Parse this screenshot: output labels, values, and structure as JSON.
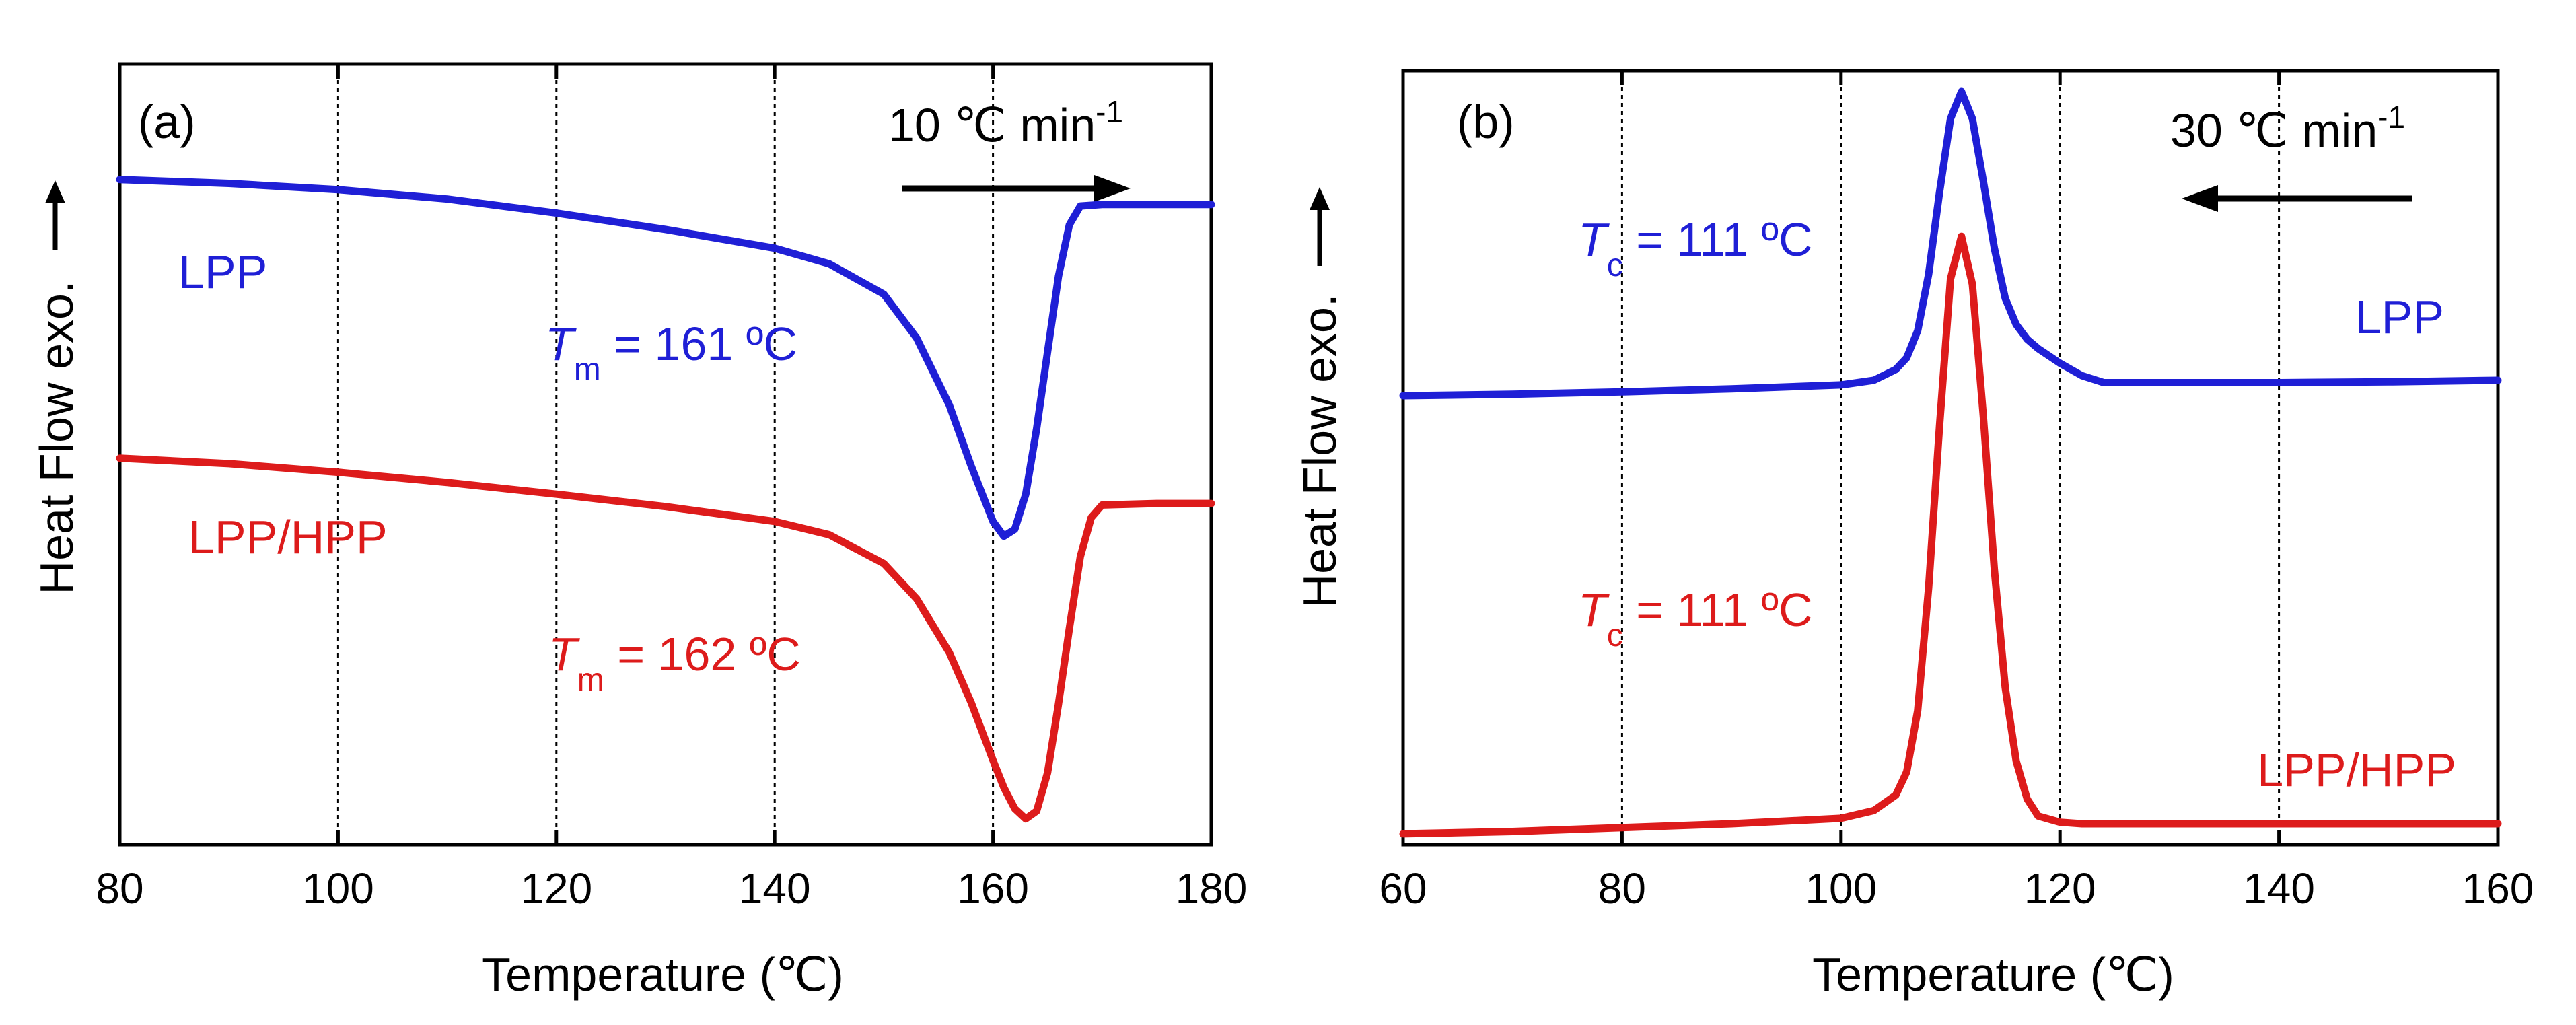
{
  "chart_data": [
    {
      "type": "line",
      "panel_label": "(a)",
      "xlabel": "Temperature (℃)",
      "ylabel": "Heat Flow exo.",
      "xlim": [
        80,
        180
      ],
      "xticks": [
        80,
        100,
        120,
        140,
        160,
        180
      ],
      "grid_x": [
        100,
        120,
        140,
        160
      ],
      "rate_label": "10 ℃ min",
      "rate_exponent": "-1",
      "rate_direction": "right",
      "y_units": "arbitrary (normalized 0 = bottom, 1 = top)",
      "series": [
        {
          "name": "LPP",
          "color": "#1f1fd6",
          "x": [
            80,
            90,
            100,
            110,
            120,
            130,
            140,
            145,
            150,
            153,
            156,
            158,
            160,
            161,
            162,
            163,
            164,
            165,
            166,
            167,
            168,
            170,
            175,
            180
          ],
          "y": [
            0.852,
            0.847,
            0.839,
            0.827,
            0.809,
            0.788,
            0.764,
            0.744,
            0.705,
            0.649,
            0.563,
            0.485,
            0.414,
            0.395,
            0.404,
            0.449,
            0.533,
            0.631,
            0.728,
            0.794,
            0.818,
            0.82,
            0.82,
            0.82
          ],
          "annotation": {
            "symbol": "T",
            "subscript": "m",
            "text": " = 161 ºC"
          }
        },
        {
          "name": "LPP/HPP",
          "color": "#dd1b1b",
          "x": [
            80,
            90,
            100,
            110,
            120,
            130,
            140,
            145,
            150,
            153,
            156,
            158,
            160,
            161,
            162,
            163,
            164,
            165,
            166,
            167,
            168,
            169,
            170,
            175,
            180
          ],
          "y": [
            0.495,
            0.488,
            0.477,
            0.464,
            0.449,
            0.433,
            0.414,
            0.397,
            0.36,
            0.315,
            0.246,
            0.182,
            0.108,
            0.073,
            0.046,
            0.033,
            0.043,
            0.092,
            0.18,
            0.277,
            0.369,
            0.419,
            0.435,
            0.437,
            0.437
          ],
          "annotation": {
            "symbol": "T",
            "subscript": "m",
            "text": " = 162 ºC"
          }
        }
      ]
    },
    {
      "type": "line",
      "panel_label": "(b)",
      "xlabel": "Temperature (℃)",
      "ylabel": "Heat Flow exo.",
      "xlim": [
        60,
        160
      ],
      "xticks": [
        60,
        80,
        100,
        120,
        140,
        160
      ],
      "grid_x": [
        80,
        100,
        120,
        140
      ],
      "rate_label": "30 ℃ min",
      "rate_exponent": "-1",
      "rate_direction": "left",
      "y_units": "arbitrary (normalized 0 = bottom, 1 = top)",
      "series": [
        {
          "name": "LPP",
          "color": "#1f1fd6",
          "x": [
            60,
            70,
            80,
            90,
            100,
            103,
            105,
            106,
            107,
            108,
            109,
            110,
            111,
            112,
            113,
            114,
            115,
            116,
            117,
            118,
            120,
            122,
            124,
            130,
            140,
            150,
            160
          ],
          "y": [
            0.58,
            0.582,
            0.585,
            0.589,
            0.594,
            0.6,
            0.614,
            0.629,
            0.664,
            0.737,
            0.843,
            0.938,
            0.973,
            0.938,
            0.857,
            0.771,
            0.706,
            0.672,
            0.653,
            0.641,
            0.622,
            0.606,
            0.597,
            0.597,
            0.597,
            0.598,
            0.6
          ],
          "annotation": {
            "symbol": "T",
            "subscript": "c",
            "text": " = 111 ºC"
          }
        },
        {
          "name": "LPP/HPP",
          "color": "#dd1b1b",
          "x": [
            60,
            70,
            80,
            90,
            100,
            103,
            105,
            106,
            107,
            108,
            109,
            110,
            111,
            112,
            113,
            114,
            115,
            116,
            117,
            118,
            120,
            122,
            130,
            140,
            150,
            160
          ],
          "y": [
            0.014,
            0.017,
            0.022,
            0.027,
            0.034,
            0.044,
            0.064,
            0.094,
            0.173,
            0.332,
            0.541,
            0.731,
            0.786,
            0.724,
            0.553,
            0.356,
            0.203,
            0.108,
            0.059,
            0.037,
            0.029,
            0.027,
            0.027,
            0.027,
            0.027,
            0.027
          ],
          "annotation": {
            "symbol": "T",
            "subscript": "c",
            "text": " = 111 ºC"
          }
        }
      ]
    }
  ]
}
